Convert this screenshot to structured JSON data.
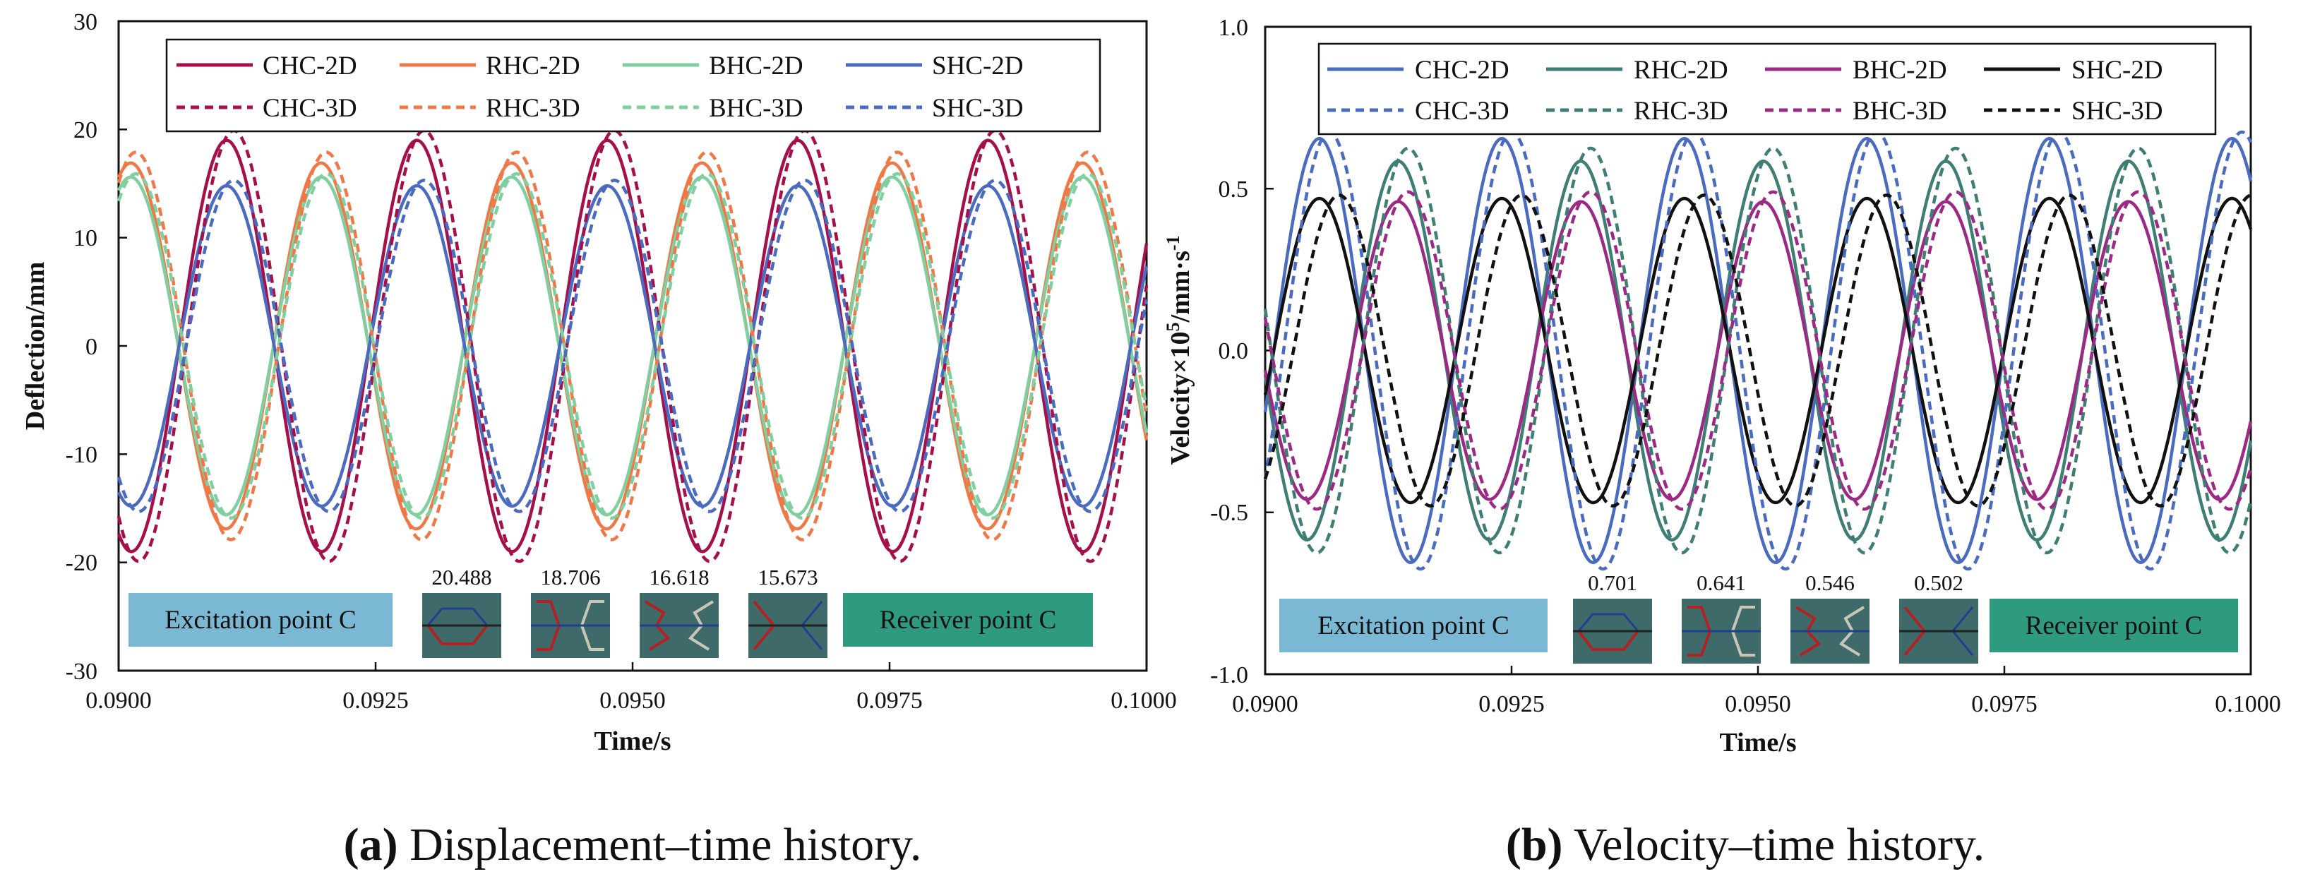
{
  "colors": {
    "crimson": "#A50F4A",
    "orange": "#F07846",
    "mint": "#7FCFA0",
    "blue": "#4A6BBF",
    "teal": "#3F7E74",
    "magenta": "#9C2A84",
    "black": "#111111",
    "excitation_box": "#7AB8D4",
    "receiver_box": "#2E9B80",
    "inset_bg": "#3E6B6A"
  },
  "chart_data": [
    {
      "type": "line",
      "panel": "a",
      "caption_label": "(a)",
      "caption_text": " Displacement–time history.",
      "xlabel": "Time/s",
      "ylabel": "Deflection/mm",
      "xlim": [
        0.09,
        0.1
      ],
      "ylim": [
        -30,
        30
      ],
      "xticks": [
        "0.0900",
        "0.0925",
        "0.0950",
        "0.0975",
        "0.1000"
      ],
      "xtick_values": [
        0.09,
        0.0925,
        0.095,
        0.0975,
        0.1
      ],
      "yticks": [
        "30",
        "20",
        "10",
        "0",
        "-10",
        "-20",
        "-30"
      ],
      "ytick_values": [
        30,
        20,
        10,
        0,
        -10,
        -20,
        -30
      ],
      "frequency_hz": 540,
      "legend": {
        "position": "top",
        "columns": 4
      },
      "series": [
        {
          "name": "CHC-2D",
          "color_key": "crimson",
          "style": "solid",
          "amplitude": 19.0,
          "peak_time": 0.09105
        },
        {
          "name": "RHC-2D",
          "color_key": "orange",
          "style": "solid",
          "amplitude": 16.9,
          "peak_time": 0.09197
        },
        {
          "name": "BHC-2D",
          "color_key": "mint",
          "style": "solid",
          "amplitude": 15.6,
          "peak_time": 0.09197
        },
        {
          "name": "SHC-2D",
          "color_key": "blue",
          "style": "solid",
          "amplitude": 14.8,
          "peak_time": 0.09105
        },
        {
          "name": "CHC-3D",
          "color_key": "crimson",
          "style": "dashed",
          "amplitude": 19.9,
          "peak_time": 0.09112
        },
        {
          "name": "RHC-3D",
          "color_key": "orange",
          "style": "dashed",
          "amplitude": 17.9,
          "peak_time": 0.09202
        },
        {
          "name": "BHC-3D",
          "color_key": "mint",
          "style": "dashed",
          "amplitude": 15.9,
          "peak_time": 0.09202
        },
        {
          "name": "SHC-3D",
          "color_key": "blue",
          "style": "dashed",
          "amplitude": 15.3,
          "peak_time": 0.09112
        }
      ],
      "annotations": {
        "left_box": "Excitation point C",
        "right_box": "Receiver point C",
        "inset_values": [
          "20.488",
          "18.706",
          "16.618",
          "15.673"
        ]
      }
    },
    {
      "type": "line",
      "panel": "b",
      "caption_label": "(b)",
      "caption_text": " Velocity–time history.",
      "xlabel": "Time/s",
      "ylabel_main": "Velocity×10",
      "ylabel_sup": "5",
      "ylabel_unit": "/mm·s",
      "ylabel_sup2": "-1",
      "xlim": [
        0.09,
        0.1
      ],
      "ylim": [
        -1.0,
        1.0
      ],
      "xticks": [
        "0.0900",
        "0.0925",
        "0.0950",
        "0.0975",
        "0.1000"
      ],
      "xtick_values": [
        0.09,
        0.0925,
        0.095,
        0.0975,
        0.1
      ],
      "yticks": [
        "1.0",
        "0.5",
        "0.0",
        "-0.5",
        "-1.0"
      ],
      "ytick_values": [
        1.0,
        0.5,
        0.0,
        -0.5,
        -1.0
      ],
      "frequency_hz": 540,
      "legend": {
        "position": "top",
        "columns": 4
      },
      "series": [
        {
          "name": "CHC-2D",
          "color_key": "blue",
          "style": "solid",
          "amplitude": 0.655,
          "peak_time": 0.09055
        },
        {
          "name": "RHC-2D",
          "color_key": "teal",
          "style": "solid",
          "amplitude": 0.585,
          "peak_time": 0.09135
        },
        {
          "name": "BHC-2D",
          "color_key": "magenta",
          "style": "solid",
          "amplitude": 0.46,
          "peak_time": 0.09135
        },
        {
          "name": "SHC-2D",
          "color_key": "black",
          "style": "solid",
          "amplitude": 0.47,
          "peak_time": 0.09055
        },
        {
          "name": "CHC-3D",
          "color_key": "blue",
          "style": "dashed",
          "amplitude": 0.675,
          "peak_time": 0.09065
        },
        {
          "name": "RHC-3D",
          "color_key": "teal",
          "style": "dashed",
          "amplitude": 0.625,
          "peak_time": 0.09145
        },
        {
          "name": "BHC-3D",
          "color_key": "magenta",
          "style": "dashed",
          "amplitude": 0.49,
          "peak_time": 0.09145
        },
        {
          "name": "SHC-3D",
          "color_key": "black",
          "style": "dashed",
          "amplitude": 0.48,
          "peak_time": 0.09075
        }
      ],
      "annotations": {
        "left_box": "Excitation point C",
        "right_box": "Receiver point C",
        "inset_values": [
          "0.701",
          "0.641",
          "0.546",
          "0.502"
        ]
      }
    }
  ]
}
